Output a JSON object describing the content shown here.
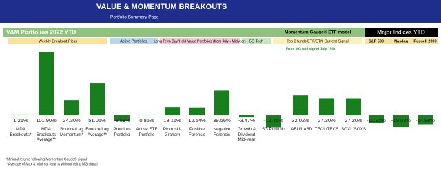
{
  "header": {
    "title": "VALUE & MOMENTUM BREAKOUTS",
    "subtitle": "Portfolio Summary Page"
  },
  "banner": {
    "left": "V&M Portfolios 2022 YTD",
    "middle": "Momentum Gauge® ETF model",
    "right": "Major Indices YTD"
  },
  "sections": [
    "Weekly Breakout Picks",
    "Active Portfolios",
    "Long Term Buy/Hold Value Portfolios (from July - Midyear)",
    "5G Tech",
    "Top 3 funds ETF/ETN Current Signal"
  ],
  "indices": [
    "S&P 500",
    "Nasdaq",
    "Russell 2000"
  ],
  "note": "From MG bull signal July 19th",
  "footnotes": [
    "*Minimal returns following Momentum Gauge® signal",
    "**Average of Max & Minimal returns without using MG signal"
  ],
  "chart_data": {
    "type": "bar",
    "color": "#17801c",
    "categories": [
      "MDA Breakouts*",
      "MDA Breakouts Average**",
      "Bounce/Lag Momentum*",
      "Bounce/Lag Average**",
      "Premium Portfolio",
      "Active ETF Portfolio",
      "Piotroski-Graham",
      "Positive Forensic",
      "Negative Forensic",
      "Growth & Dividend Mid-Year",
      "5G Portfolio",
      "LABU/LABD",
      "TECL/TECS",
      "SOXL/SOXS",
      null,
      null,
      null
    ],
    "values": [
      1.21,
      101.9,
      24.3,
      51.05,
      -8.89,
      0.86,
      13.16,
      12.54,
      39.56,
      -3.47,
      -19.45,
      32.02,
      27.3,
      27.2,
      -12.82,
      -19.03,
      -14.98
    ],
    "value_labels": [
      "1.21%",
      "101.90%",
      "24.30%",
      "51.05%",
      "-8.89%",
      "0.86%",
      "13.16%",
      "12.54%",
      "39.56%",
      "-3.47%",
      "-19.45%",
      "32.02%",
      "27.30%",
      "27.20%",
      "-12.82%",
      "-19.03%",
      "-14.98%"
    ]
  }
}
